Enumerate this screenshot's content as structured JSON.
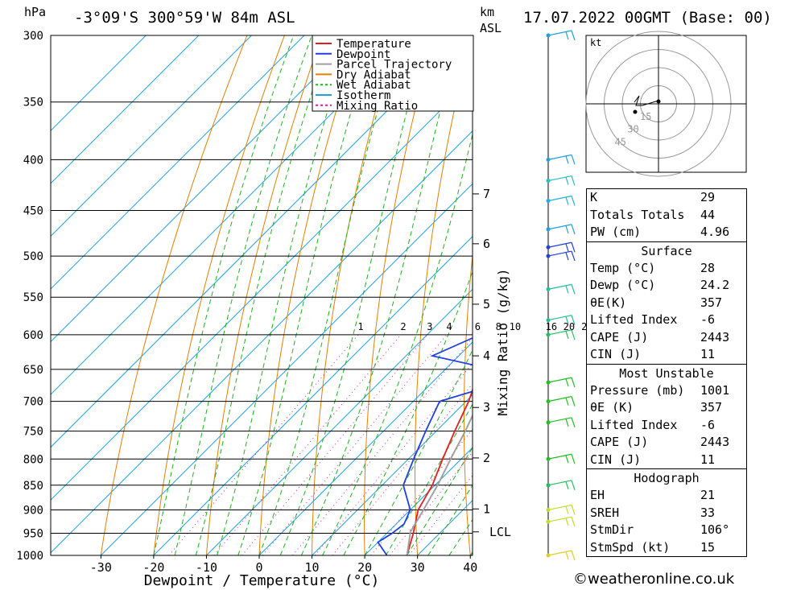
{
  "header": {
    "location": "-3°09'S  300°59'W  84m  ASL",
    "datetime": "17.07.2022  00GMT  (Base: 00)",
    "p_unit": "hPa",
    "km_unit_1": "km",
    "km_unit_2": "ASL"
  },
  "footer": {
    "credit": "©weatheronline.co.uk"
  },
  "legend": [
    {
      "label": "Temperature",
      "color": "#e02020",
      "dash": false
    },
    {
      "label": "Dewpoint",
      "color": "#2040e0",
      "dash": false
    },
    {
      "label": "Parcel Trajectory",
      "color": "#a0a0a0",
      "dash": false
    },
    {
      "label": "Dry Adiabat",
      "color": "#e08000",
      "dash": false
    },
    {
      "label": "Wet Adiabat",
      "color": "#20b020",
      "dash": true
    },
    {
      "label": "Isotherm",
      "color": "#20a0e0",
      "dash": false
    },
    {
      "label": "Mixing Ratio",
      "color": "#d020a0",
      "dash": true
    }
  ],
  "chart_data": {
    "type": "line",
    "subtype": "skew-T log-P",
    "xlabel": "Dewpoint / Temperature (°C)",
    "ylabel_right": "Mixing Ratio (g/kg)",
    "x_ticks": [
      -30,
      -20,
      -10,
      0,
      10,
      20,
      30,
      40
    ],
    "pressure_levels": [
      300,
      350,
      400,
      450,
      500,
      550,
      600,
      650,
      700,
      750,
      800,
      850,
      900,
      950,
      1000
    ],
    "height_km": [
      {
        "km": "7",
        "p": 433
      },
      {
        "km": "6",
        "p": 486
      },
      {
        "km": "5",
        "p": 559
      },
      {
        "km": "4",
        "p": 630
      },
      {
        "km": "3",
        "p": 710
      },
      {
        "km": "2",
        "p": 798
      },
      {
        "km": "1",
        "p": 898
      },
      {
        "km": "LCL",
        "p": 947
      }
    ],
    "mixing_ratio_labels": [
      "1",
      "2",
      "3",
      "4",
      "6",
      "8",
      "10",
      "16",
      "20",
      "25"
    ],
    "mixing_ratio_values": [
      1,
      2,
      3,
      4,
      6,
      8,
      10,
      16,
      20,
      25
    ],
    "series": [
      {
        "name": "Temperature",
        "color": "#e02020",
        "points": [
          [
            1000,
            28
          ],
          [
            950,
            25
          ],
          [
            900,
            21.5
          ],
          [
            850,
            19.5
          ],
          [
            800,
            16.5
          ],
          [
            750,
            13.5
          ],
          [
            700,
            10.5
          ],
          [
            650,
            6.5
          ],
          [
            600,
            3
          ],
          [
            550,
            -1
          ],
          [
            500,
            -5.5
          ],
          [
            450,
            -11
          ],
          [
            400,
            -18
          ],
          [
            375,
            -22
          ]
        ]
      },
      {
        "name": "Dewpoint",
        "color": "#2040e0",
        "points": [
          [
            1000,
            24.2
          ],
          [
            970,
            20
          ],
          [
            950,
            21
          ],
          [
            930,
            21.5
          ],
          [
            900,
            20
          ],
          [
            850,
            14
          ],
          [
            800,
            11
          ],
          [
            750,
            8
          ],
          [
            700,
            5
          ],
          [
            680,
            10.5
          ],
          [
            650,
            9
          ],
          [
            630,
            -5
          ],
          [
            600,
            0
          ],
          [
            550,
            -2.5
          ],
          [
            500,
            -7.5
          ],
          [
            450,
            -19
          ],
          [
            410,
            -21
          ],
          [
            400,
            -22.5
          ],
          [
            375,
            -27
          ],
          [
            350,
            -32
          ],
          [
            300,
            -41
          ]
        ]
      },
      {
        "name": "Parcel Trajectory",
        "color": "#a0a0a0",
        "points": [
          [
            1000,
            28
          ],
          [
            947,
            24.2
          ],
          [
            900,
            22.5
          ],
          [
            850,
            20.5
          ],
          [
            800,
            18
          ],
          [
            750,
            15.5
          ],
          [
            700,
            12.5
          ],
          [
            650,
            9
          ],
          [
            600,
            5.5
          ],
          [
            550,
            1.5
          ],
          [
            500,
            -2.5
          ],
          [
            450,
            -7
          ],
          [
            400,
            -13
          ],
          [
            375,
            -16.5
          ]
        ]
      }
    ],
    "wind_barbs": [
      {
        "p": 1000,
        "color": "#e0d020"
      },
      {
        "p": 925,
        "color": "#c0e020"
      },
      {
        "p": 900,
        "color": "#c0e020"
      },
      {
        "p": 850,
        "color": "#20c060"
      },
      {
        "p": 800,
        "color": "#20c020"
      },
      {
        "p": 735,
        "color": "#20c020"
      },
      {
        "p": 700,
        "color": "#20c020"
      },
      {
        "p": 670,
        "color": "#20c020"
      },
      {
        "p": 600,
        "color": "#20c060"
      },
      {
        "p": 580,
        "color": "#20c090"
      },
      {
        "p": 540,
        "color": "#20c0a0"
      },
      {
        "p": 500,
        "color": "#2040e0"
      },
      {
        "p": 490,
        "color": "#2040e0"
      },
      {
        "p": 470,
        "color": "#20a0e0"
      },
      {
        "p": 440,
        "color": "#20b0e0"
      },
      {
        "p": 420,
        "color": "#20c0c0"
      },
      {
        "p": 400,
        "color": "#20a0e0"
      },
      {
        "p": 300,
        "color": "#20a0e0"
      }
    ]
  },
  "hodograph": {
    "unit": "kt",
    "ring_labels": [
      "15",
      "30",
      "45"
    ]
  },
  "table": {
    "indices": [
      {
        "label": "K",
        "value": "29"
      },
      {
        "label": "Totals Totals",
        "value": "44"
      },
      {
        "label": "PW (cm)",
        "value": "4.96"
      }
    ],
    "surface_title": "Surface",
    "surface": [
      {
        "label": "Temp (°C)",
        "value": "28"
      },
      {
        "label": "Dewp (°C)",
        "value": "24.2"
      },
      {
        "label": "θE(K)",
        "value": "357"
      },
      {
        "label": "Lifted Index",
        "value": "-6"
      },
      {
        "label": "CAPE (J)",
        "value": "2443"
      },
      {
        "label": "CIN (J)",
        "value": "11"
      }
    ],
    "mu_title": "Most Unstable",
    "mu": [
      {
        "label": "Pressure (mb)",
        "value": "1001"
      },
      {
        "label": "θE (K)",
        "value": "357"
      },
      {
        "label": "Lifted Index",
        "value": "-6"
      },
      {
        "label": "CAPE (J)",
        "value": "2443"
      },
      {
        "label": "CIN (J)",
        "value": "11"
      }
    ],
    "hodo_title": "Hodograph",
    "hodo": [
      {
        "label": "EH",
        "value": "21"
      },
      {
        "label": "SREH",
        "value": "33"
      },
      {
        "label": "StmDir",
        "value": "106°"
      },
      {
        "label": "StmSpd (kt)",
        "value": "15"
      }
    ]
  }
}
